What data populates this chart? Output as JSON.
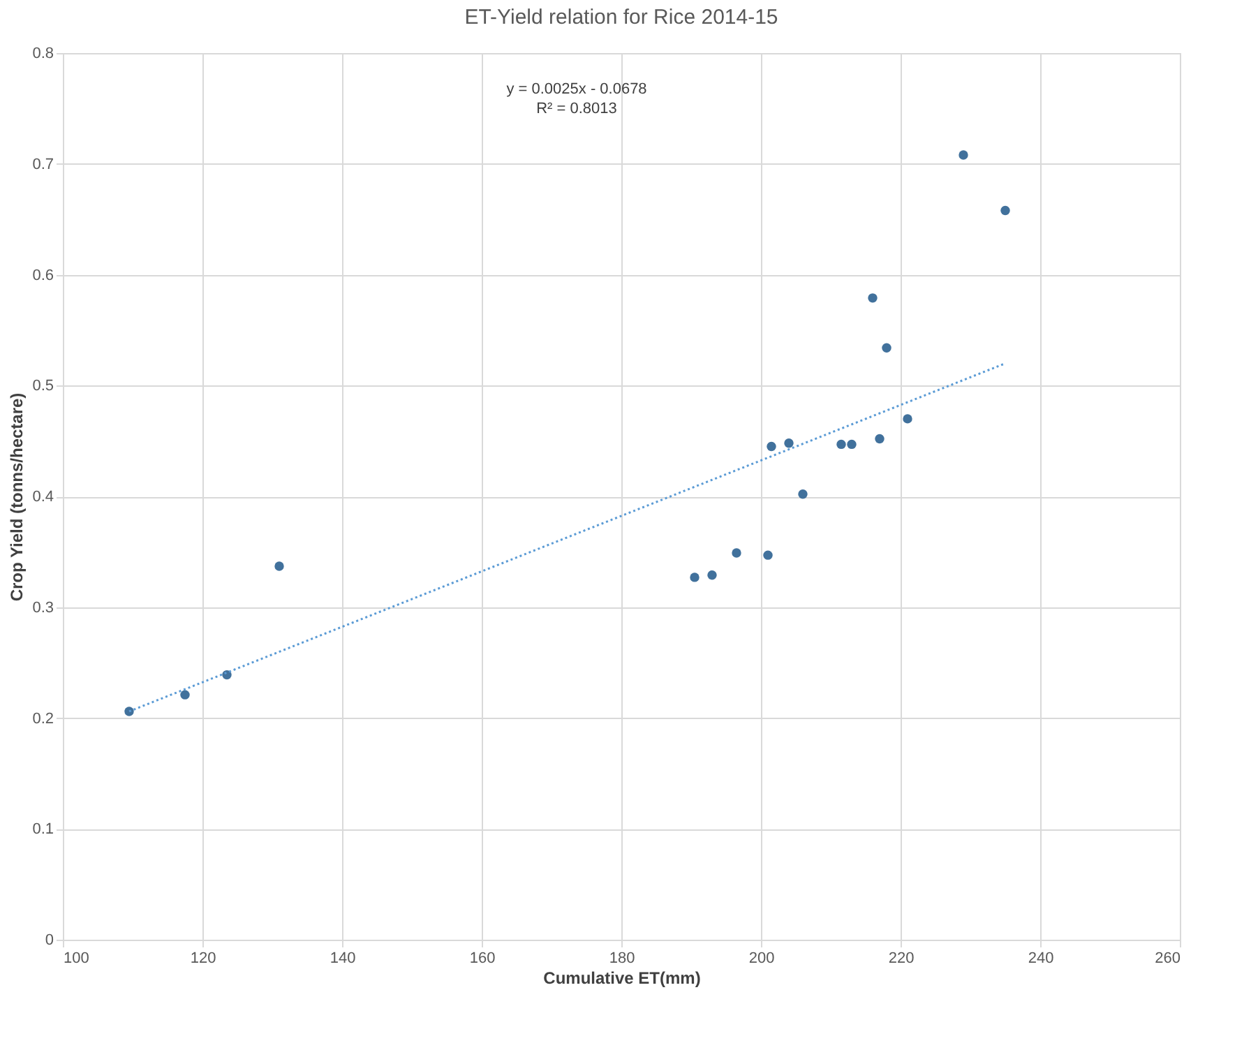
{
  "chart_data": {
    "type": "scatter",
    "title": "ET-Yield relation for Rice 2014-15",
    "xlabel": "Cumulative ET(mm)",
    "ylabel": "Crop Yield (tonns/hectare)",
    "annotations": [
      "y = 0.0025x - 0.0678",
      "R² = 0.8013"
    ],
    "series": [
      {
        "color": "#41719c",
        "marker": "circle",
        "x": [
          109.5,
          117.5,
          123.5,
          131,
          190.5,
          193,
          196.5,
          201,
          201.5,
          204,
          206,
          211.5,
          213,
          217,
          216,
          218,
          221,
          229,
          235
        ],
        "values": [
          0.206,
          0.221,
          0.239,
          0.337,
          0.327,
          0.329,
          0.349,
          0.347,
          0.445,
          0.448,
          0.402,
          0.447,
          0.447,
          0.452,
          0.579,
          0.534,
          0.47,
          0.708,
          0.658
        ]
      },
      {
        "type": "line",
        "color": "#5b9bd5",
        "line_style": "dotted",
        "x": [
          109.5,
          235
        ],
        "values": [
          0.206,
          0.52
        ]
      }
    ],
    "xlim": [
      100,
      260
    ],
    "xticks": [
      100,
      120,
      140,
      160,
      180,
      200,
      220,
      240,
      260
    ],
    "ylim": [
      0,
      0.8
    ],
    "yticks": [
      0,
      0.1,
      0.2,
      0.3,
      0.4,
      0.5,
      0.6,
      0.7,
      0.8
    ],
    "grid": true
  }
}
